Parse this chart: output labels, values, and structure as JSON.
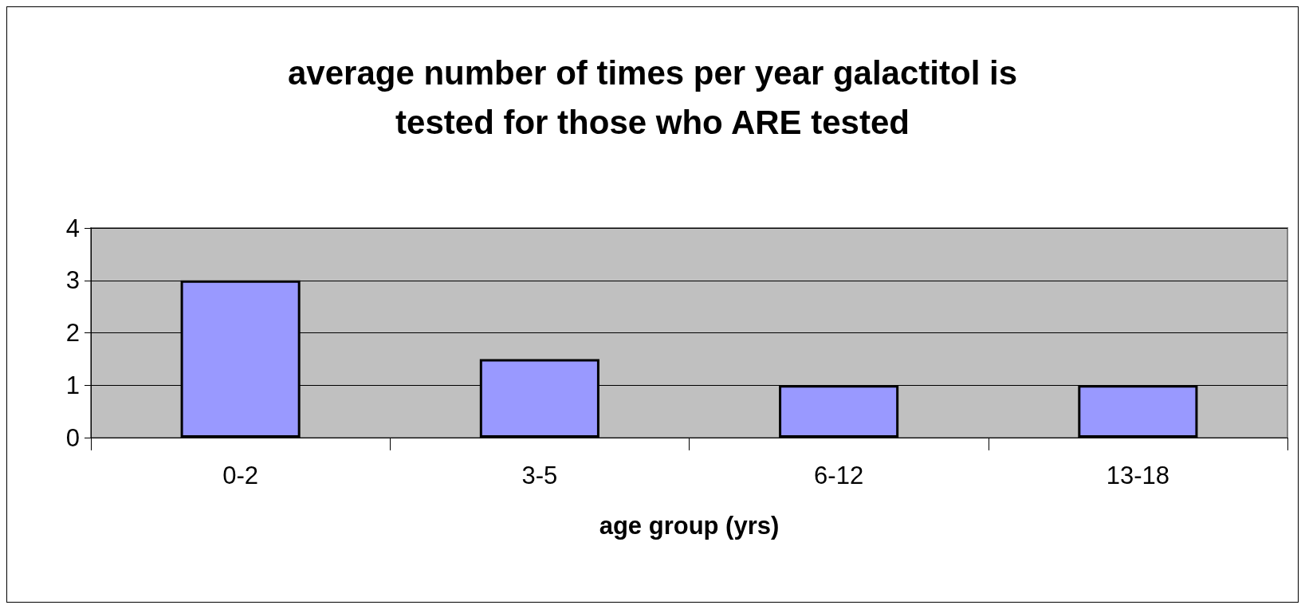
{
  "chart_data": {
    "type": "bar",
    "title": "average number of times per year galactitol is\ntested for those who ARE tested",
    "xlabel": "age group (yrs)",
    "categories": [
      "0-2",
      "3-5",
      "6-12",
      "13-18"
    ],
    "values": [
      3,
      1.5,
      1,
      1
    ],
    "color": "#9999ff",
    "ylim": [
      0,
      4
    ],
    "yticks": [
      0,
      1,
      2,
      3,
      4
    ],
    "grid": "y"
  }
}
